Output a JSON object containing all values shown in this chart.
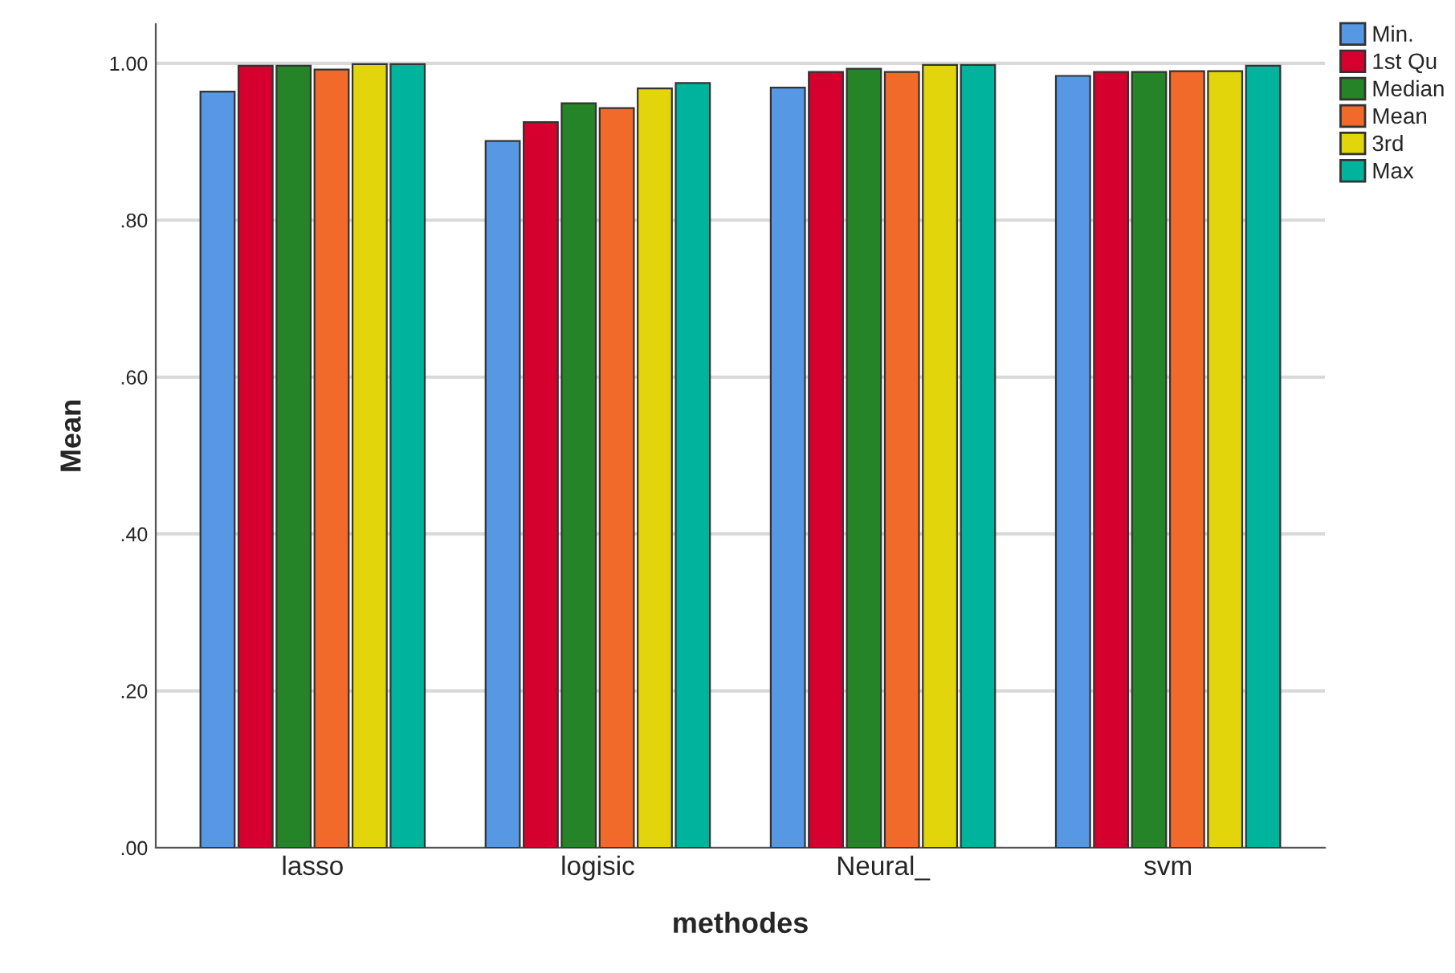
{
  "chart_data": {
    "type": "bar",
    "xlabel": "methodes",
    "ylabel": "Mean",
    "categories": [
      "lasso",
      "logisic",
      "Neural_",
      "svm"
    ],
    "series": [
      {
        "name": "Min.",
        "color": "#5698e3",
        "values": [
          0.964,
          0.901,
          0.969,
          0.984
        ]
      },
      {
        "name": "1st Qu",
        "color": "#d6002f",
        "values": [
          0.997,
          0.925,
          0.989,
          0.989
        ]
      },
      {
        "name": "Median",
        "color": "#258427",
        "values": [
          0.997,
          0.949,
          0.993,
          0.989
        ]
      },
      {
        "name": "Mean",
        "color": "#f26a2a",
        "values": [
          0.992,
          0.943,
          0.989,
          0.99
        ]
      },
      {
        "name": "3rd",
        "color": "#e3d50c",
        "values": [
          0.999,
          0.968,
          0.998,
          0.99
        ]
      },
      {
        "name": "Max",
        "color": "#00b39c",
        "values": [
          0.999,
          0.975,
          0.998,
          0.997
        ]
      }
    ],
    "ylim": [
      0,
      1.05
    ],
    "yticks": [
      {
        "value": 0,
        "label": ".00"
      },
      {
        "value": 0.2,
        "label": ".20"
      },
      {
        "value": 0.4,
        "label": ".40"
      },
      {
        "value": 0.6,
        "label": ".60"
      },
      {
        "value": 0.8,
        "label": ".80"
      },
      {
        "value": 1.0,
        "label": "1.00"
      }
    ],
    "grid": "y",
    "legend": "top right"
  }
}
